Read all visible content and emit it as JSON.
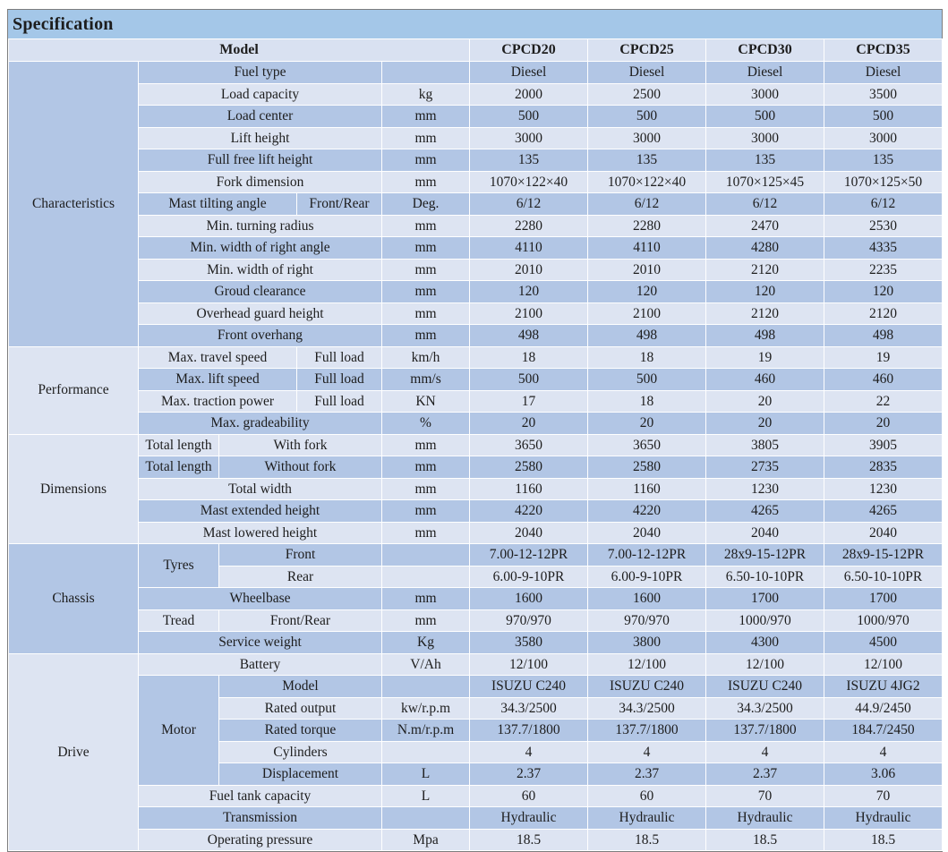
{
  "title": "Specification",
  "header": {
    "model_label": "Model",
    "models": [
      "CPCD20",
      "CPCD25",
      "CPCD30",
      "CPCD35"
    ]
  },
  "colors": {
    "title_bar": "#a4c7e8",
    "header_row": "#d9e1f1",
    "row_dark": "#b2c6e5",
    "row_light": "#dde4f2",
    "cell_border": "#ffffff",
    "outer_border": "#7d7d7d",
    "text": "#1d1d1d"
  },
  "sections": [
    {
      "name": "Characteristics",
      "rows": [
        {
          "label": "Fuel type",
          "unit": "",
          "values": [
            "Diesel",
            "Diesel",
            "Diesel",
            "Diesel"
          ]
        },
        {
          "label": "Load capacity",
          "unit": "kg",
          "values": [
            "2000",
            "2500",
            "3000",
            "3500"
          ]
        },
        {
          "label": "Load center",
          "unit": "mm",
          "values": [
            "500",
            "500",
            "500",
            "500"
          ]
        },
        {
          "label": "Lift height",
          "unit": "mm",
          "values": [
            "3000",
            "3000",
            "3000",
            "3000"
          ]
        },
        {
          "label": "Full free lift height",
          "unit": "mm",
          "values": [
            "135",
            "135",
            "135",
            "135"
          ]
        },
        {
          "label": "Fork dimension",
          "unit": "mm",
          "values": [
            "1070×122×40",
            "1070×122×40",
            "1070×125×45",
            "1070×125×50"
          ]
        },
        {
          "label": "Mast tilting angle",
          "sub": "Front/Rear",
          "unit": "Deg.",
          "values": [
            "6/12",
            "6/12",
            "6/12",
            "6/12"
          ]
        },
        {
          "label": "Min. turning radius",
          "unit": "mm",
          "values": [
            "2280",
            "2280",
            "2470",
            "2530"
          ]
        },
        {
          "label": "Min. width of right angle",
          "unit": "mm",
          "values": [
            "4110",
            "4110",
            "4280",
            "4335"
          ]
        },
        {
          "label": "Min. width of right",
          "unit": "mm",
          "values": [
            "2010",
            "2010",
            "2120",
            "2235"
          ]
        },
        {
          "label": "Groud clearance",
          "unit": "mm",
          "values": [
            "120",
            "120",
            "120",
            "120"
          ]
        },
        {
          "label": "Overhead guard height",
          "unit": "mm",
          "values": [
            "2100",
            "2100",
            "2120",
            "2120"
          ]
        },
        {
          "label": "Front overhang",
          "unit": "mm",
          "values": [
            "498",
            "498",
            "498",
            "498"
          ]
        }
      ]
    },
    {
      "name": "Performance",
      "rows": [
        {
          "label": "Max. travel speed",
          "sub": "Full load",
          "unit": "km/h",
          "values": [
            "18",
            "18",
            "19",
            "19"
          ]
        },
        {
          "label": "Max. lift speed",
          "sub": "Full load",
          "unit": "mm/s",
          "values": [
            "500",
            "500",
            "460",
            "460"
          ]
        },
        {
          "label": "Max. traction power",
          "sub": "Full load",
          "unit": "KN",
          "values": [
            "17",
            "18",
            "20",
            "22"
          ]
        },
        {
          "label": "Max. gradeability",
          "unit": "%",
          "values": [
            "20",
            "20",
            "20",
            "20"
          ]
        }
      ]
    },
    {
      "name": "Dimensions",
      "rows": [
        {
          "label": "Total length",
          "sub": "With fork",
          "unit": "mm",
          "values": [
            "3650",
            "3650",
            "3805",
            "3905"
          ]
        },
        {
          "label": "Total length",
          "sub": "Without fork",
          "unit": "mm",
          "values": [
            "2580",
            "2580",
            "2735",
            "2835"
          ]
        },
        {
          "label": "Total width",
          "unit": "mm",
          "values": [
            "1160",
            "1160",
            "1230",
            "1230"
          ]
        },
        {
          "label": "Mast extended height",
          "unit": "mm",
          "values": [
            "4220",
            "4220",
            "4265",
            "4265"
          ]
        },
        {
          "label": "Mast lowered height",
          "unit": "mm",
          "values": [
            "2040",
            "2040",
            "2040",
            "2040"
          ]
        }
      ]
    },
    {
      "name": "Chassis",
      "rows": [
        {
          "group": "Tyres",
          "group_rows": 2,
          "label": "Front",
          "unit": "",
          "values": [
            "7.00-12-12PR",
            "7.00-12-12PR",
            "28x9-15-12PR",
            "28x9-15-12PR"
          ]
        },
        {
          "grouped": true,
          "label": "Rear",
          "unit": "",
          "values": [
            "6.00-9-10PR",
            "6.00-9-10PR",
            "6.50-10-10PR",
            "6.50-10-10PR"
          ]
        },
        {
          "label": "Wheelbase",
          "unit": "mm",
          "values": [
            "1600",
            "1600",
            "1700",
            "1700"
          ]
        },
        {
          "label": "Tread",
          "sub": "Front/Rear",
          "unit": "mm",
          "values": [
            "970/970",
            "970/970",
            "1000/970",
            "1000/970"
          ]
        },
        {
          "label": "Service weight",
          "unit": "Kg",
          "values": [
            "3580",
            "3800",
            "4300",
            "4500"
          ]
        }
      ]
    },
    {
      "name": "Drive",
      "rows": [
        {
          "label": "Battery",
          "unit": "V/Ah",
          "values": [
            "12/100",
            "12/100",
            "12/100",
            "12/100"
          ]
        },
        {
          "group": "Motor",
          "group_rows": 5,
          "label": "Model",
          "unit": "",
          "values": [
            "ISUZU C240",
            "ISUZU C240",
            "ISUZU C240",
            "ISUZU 4JG2"
          ]
        },
        {
          "grouped": true,
          "label": "Rated output",
          "unit": "kw/r.p.m",
          "values": [
            "34.3/2500",
            "34.3/2500",
            "34.3/2500",
            "44.9/2450"
          ]
        },
        {
          "grouped": true,
          "label": "Rated torque",
          "unit": "N.m/r.p.m",
          "values": [
            "137.7/1800",
            "137.7/1800",
            "137.7/1800",
            "184.7/2450"
          ]
        },
        {
          "grouped": true,
          "label": "Cylinders",
          "unit": "",
          "values": [
            "4",
            "4",
            "4",
            "4"
          ]
        },
        {
          "grouped": true,
          "label": "Displacement",
          "unit": "L",
          "values": [
            "2.37",
            "2.37",
            "2.37",
            "3.06"
          ]
        },
        {
          "label": "Fuel tank capacity",
          "unit": "L",
          "values": [
            "60",
            "60",
            "70",
            "70"
          ]
        },
        {
          "label": "Transmission",
          "unit": "",
          "values": [
            "Hydraulic",
            "Hydraulic",
            "Hydraulic",
            "Hydraulic"
          ]
        },
        {
          "label": "Operating pressure",
          "unit": "Mpa",
          "values": [
            "18.5",
            "18.5",
            "18.5",
            "18.5"
          ]
        }
      ]
    }
  ]
}
